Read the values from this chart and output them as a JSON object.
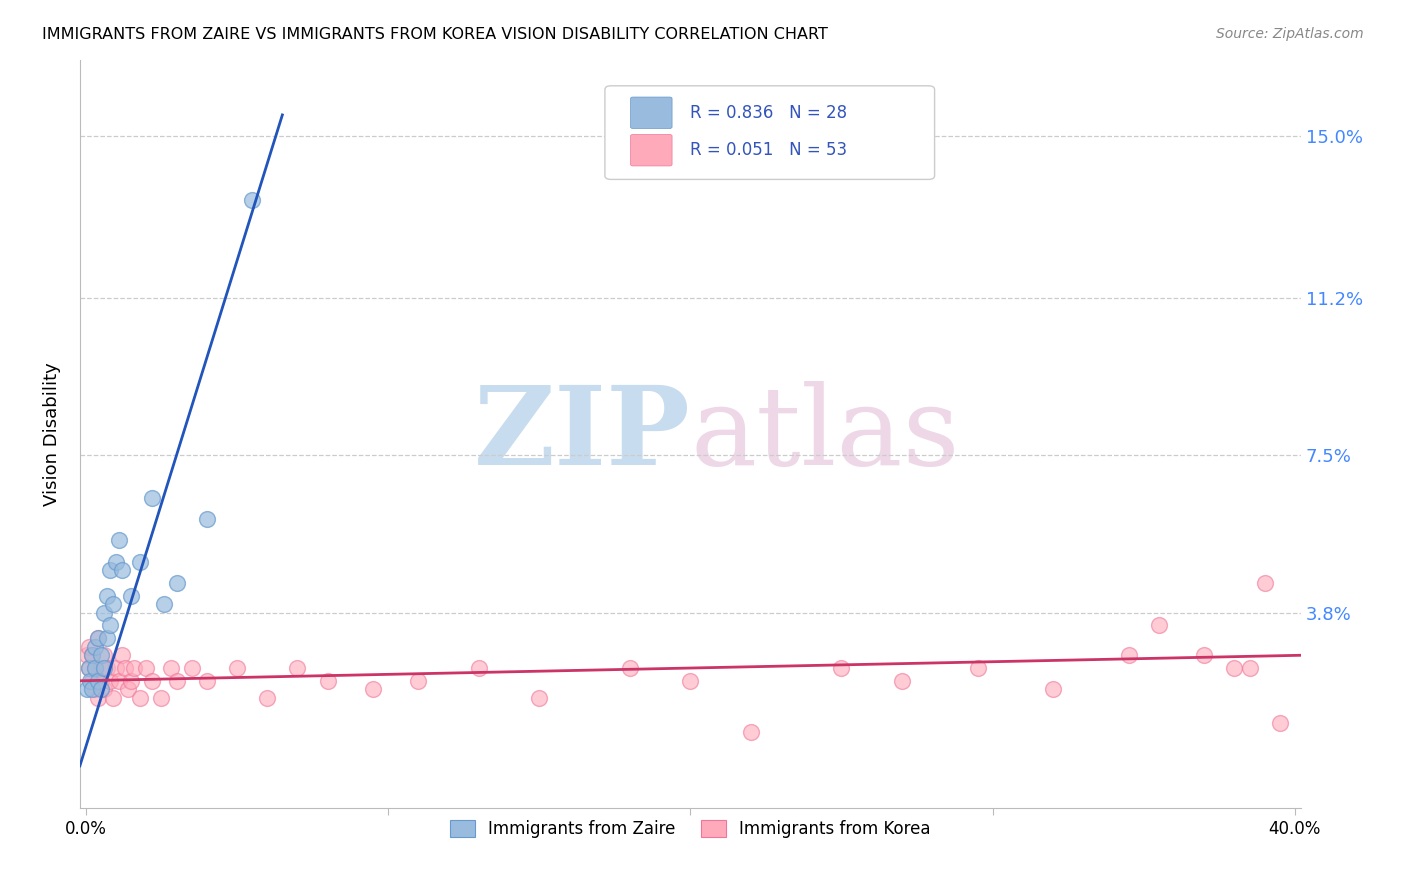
{
  "title": "IMMIGRANTS FROM ZAIRE VS IMMIGRANTS FROM KOREA VISION DISABILITY CORRELATION CHART",
  "source": "Source: ZipAtlas.com",
  "ylabel": "Vision Disability",
  "ytick_labels": [
    "15.0%",
    "11.2%",
    "7.5%",
    "3.8%"
  ],
  "ytick_values": [
    0.15,
    0.112,
    0.075,
    0.038
  ],
  "xlim": [
    -0.002,
    0.402
  ],
  "ylim": [
    -0.008,
    0.168
  ],
  "zaire_color": "#99BBDD",
  "zaire_edge_color": "#6699CC",
  "korea_color": "#FFAABB",
  "korea_edge_color": "#EE7799",
  "zaire_line_color": "#2255BB",
  "korea_line_color": "#CC3366",
  "zaire_R": 0.836,
  "zaire_N": 28,
  "korea_R": 0.051,
  "korea_N": 53,
  "legend_text_color": "#3355BB",
  "watermark_zip_color": "#C8DCEF",
  "watermark_atlas_color": "#EED8E8",
  "background_color": "#FFFFFF",
  "zaire_x": [
    0.0005,
    0.001,
    0.0015,
    0.002,
    0.002,
    0.003,
    0.003,
    0.004,
    0.004,
    0.005,
    0.005,
    0.006,
    0.006,
    0.007,
    0.007,
    0.008,
    0.008,
    0.009,
    0.01,
    0.011,
    0.012,
    0.015,
    0.018,
    0.022,
    0.026,
    0.03,
    0.04,
    0.055
  ],
  "zaire_y": [
    0.02,
    0.025,
    0.022,
    0.02,
    0.028,
    0.025,
    0.03,
    0.022,
    0.032,
    0.02,
    0.028,
    0.025,
    0.038,
    0.032,
    0.042,
    0.035,
    0.048,
    0.04,
    0.05,
    0.055,
    0.048,
    0.042,
    0.05,
    0.065,
    0.04,
    0.045,
    0.06,
    0.135
  ],
  "korea_x": [
    0.0005,
    0.001,
    0.001,
    0.002,
    0.002,
    0.003,
    0.003,
    0.004,
    0.004,
    0.005,
    0.005,
    0.006,
    0.006,
    0.007,
    0.008,
    0.009,
    0.01,
    0.011,
    0.012,
    0.013,
    0.014,
    0.015,
    0.016,
    0.018,
    0.02,
    0.022,
    0.025,
    0.028,
    0.03,
    0.035,
    0.04,
    0.05,
    0.06,
    0.07,
    0.08,
    0.095,
    0.11,
    0.13,
    0.15,
    0.18,
    0.2,
    0.22,
    0.25,
    0.27,
    0.295,
    0.32,
    0.345,
    0.355,
    0.37,
    0.38,
    0.385,
    0.39,
    0.395
  ],
  "korea_y": [
    0.028,
    0.025,
    0.03,
    0.022,
    0.028,
    0.025,
    0.02,
    0.032,
    0.018,
    0.022,
    0.025,
    0.02,
    0.028,
    0.025,
    0.022,
    0.018,
    0.025,
    0.022,
    0.028,
    0.025,
    0.02,
    0.022,
    0.025,
    0.018,
    0.025,
    0.022,
    0.018,
    0.025,
    0.022,
    0.025,
    0.022,
    0.025,
    0.018,
    0.025,
    0.022,
    0.02,
    0.022,
    0.025,
    0.018,
    0.025,
    0.022,
    0.01,
    0.025,
    0.022,
    0.025,
    0.02,
    0.028,
    0.035,
    0.028,
    0.025,
    0.025,
    0.045,
    0.012
  ],
  "zaire_line_x": [
    -0.002,
    0.065
  ],
  "zaire_line_y": [
    0.002,
    0.155
  ],
  "korea_line_x": [
    -0.002,
    0.402
  ],
  "korea_line_y": [
    0.022,
    0.028
  ]
}
